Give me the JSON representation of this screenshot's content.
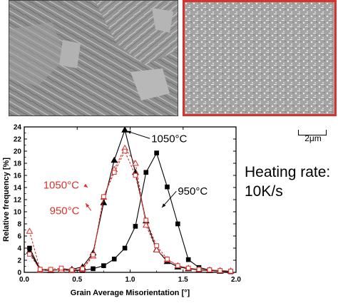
{
  "scale_bar": {
    "label": "2μm"
  },
  "heating_rate": {
    "line1": "Heating rate:",
    "line2": "10K/s"
  },
  "chart_data": {
    "type": "line",
    "xlabel": "Grain Average Misorientation [°]",
    "ylabel": "Relative frequency [%]",
    "xlim": [
      0,
      2.0
    ],
    "ylim": [
      0,
      24
    ],
    "xticks": [
      "0.0",
      "0.5",
      "1.0",
      "1.5",
      "2.0"
    ],
    "yticks": [
      "0",
      "2",
      "4",
      "6",
      "8",
      "10",
      "12",
      "14",
      "16",
      "18",
      "20",
      "22",
      "24"
    ],
    "x": [
      0.05,
      0.15,
      0.25,
      0.35,
      0.45,
      0.55,
      0.65,
      0.75,
      0.85,
      0.95,
      1.05,
      1.15,
      1.25,
      1.35,
      1.45,
      1.55,
      1.65,
      1.75,
      1.85,
      1.95
    ],
    "series": [
      {
        "name": "1050°C",
        "color": "#000000",
        "marker": "filled-triangle",
        "dash": "solid",
        "values": [
          3.5,
          0.4,
          0.3,
          0.5,
          0.5,
          0.9,
          3.2,
          11.5,
          18.5,
          23.5,
          16.5,
          8.5,
          3.8,
          1.8,
          0.9,
          0.6,
          0.4,
          0.3,
          0.2,
          0.2
        ]
      },
      {
        "name": "950°C",
        "color": "#000000",
        "marker": "filled-square",
        "dash": "solid",
        "values": [
          4.0,
          0.5,
          0.4,
          0.4,
          0.3,
          0.3,
          0.6,
          1.1,
          2.2,
          4.0,
          7.6,
          16.5,
          19.7,
          14.1,
          8.0,
          2.1,
          0.8,
          0.4,
          0.2,
          0.1
        ]
      },
      {
        "name": "1050°C",
        "color": "#d9312b",
        "marker": "open-triangle",
        "dash": "dashed",
        "values": [
          6.8,
          0.4,
          0.4,
          0.4,
          0.3,
          0.5,
          2.7,
          12.4,
          17.0,
          20.5,
          18.0,
          7.8,
          3.7,
          2.1,
          1.1,
          0.7,
          0.5,
          0.4,
          0.3,
          0.2
        ]
      },
      {
        "name": "950°C",
        "color": "#d9312b",
        "marker": "open-square",
        "dash": "dashed",
        "values": [
          3.0,
          0.5,
          0.5,
          0.7,
          0.4,
          0.6,
          2.9,
          12.5,
          16.5,
          20.0,
          16.0,
          8.6,
          4.4,
          2.2,
          1.1,
          0.7,
          0.5,
          0.4,
          0.3,
          0.2
        ]
      }
    ],
    "annotations": [
      {
        "text": "1050°C",
        "color": "#000000",
        "x": 1.2,
        "y": 21.5,
        "arrow_to": [
          0.97,
          23.3
        ]
      },
      {
        "text": "950°C",
        "color": "#000000",
        "x": 1.45,
        "y": 12.8,
        "arrow_to": [
          1.3,
          10.7
        ]
      },
      {
        "text": "1050°C",
        "color": "#d9312b",
        "x": 0.18,
        "y": 13.8,
        "arrow_to": [
          0.6,
          14.0
        ]
      },
      {
        "text": "950°C",
        "color": "#d9312b",
        "x": 0.24,
        "y": 9.6,
        "arrow_to": [
          0.58,
          11.4
        ]
      }
    ]
  }
}
